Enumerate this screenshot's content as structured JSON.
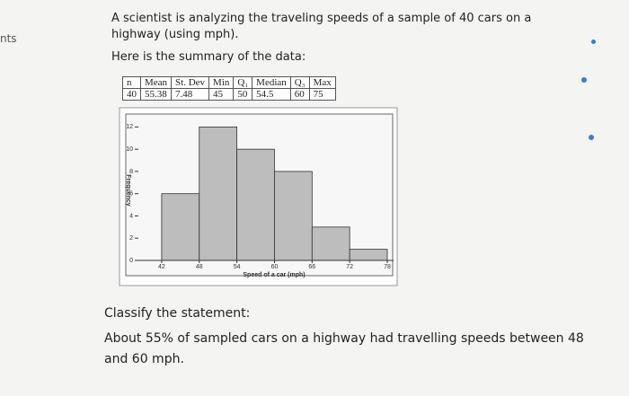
{
  "sidebar_text": "nts",
  "question": {
    "intro": "A scientist is analyzing the traveling speeds of a sample of 40 cars on a highway (using mph).",
    "summary_heading": "Here is the summary of the data:",
    "classify": "Classify the statement:",
    "statement": "About 55% of sampled cars on a highway had travelling speeds between 48 and 60 mph."
  },
  "table": {
    "headers": [
      "n",
      "Mean",
      "St. Dev",
      "Min",
      "Q₁",
      "Median",
      "Q₃",
      "Max"
    ],
    "row": [
      40,
      55.38,
      7.48,
      45,
      50,
      54.5,
      60,
      75
    ]
  },
  "chart_data": {
    "type": "histogram",
    "x_label": "Speed of a car (mph)",
    "y_label": "Frequency",
    "bins": [
      42,
      48,
      54,
      60,
      66,
      72,
      78
    ],
    "counts": [
      6,
      12,
      10,
      8,
      3,
      1
    ],
    "color": "#bdbdbd",
    "xlim": [
      38,
      79
    ],
    "xticks": [
      42,
      48,
      54,
      60,
      66,
      72,
      78
    ],
    "ylim": [
      0,
      13
    ],
    "yticks": [
      0,
      2,
      4,
      6,
      8,
      10,
      12
    ]
  }
}
